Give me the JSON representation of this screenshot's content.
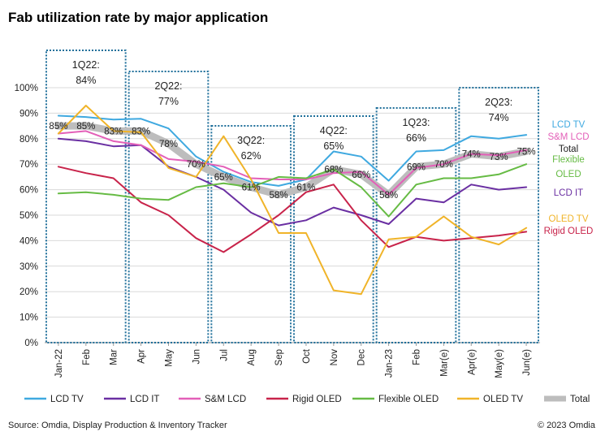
{
  "title": "Fab utilization rate by major application",
  "source": "Source: Omdia, Display Production & Inventory Tracker",
  "copyright": "© 2023 Omdia",
  "chart_data": {
    "type": "line",
    "title": "Fab utilization rate by major application",
    "ylim": [
      0,
      100
    ],
    "y_ticks": [
      "0%",
      "10%",
      "20%",
      "30%",
      "40%",
      "50%",
      "60%",
      "70%",
      "80%",
      "90%",
      "100%"
    ],
    "x": [
      "Jan-22",
      "Feb",
      "Mar",
      "Apr",
      "May",
      "Jun",
      "Jul",
      "Aug",
      "Sep",
      "Oct",
      "Nov",
      "Dec",
      "Jan-23",
      "Feb",
      "Mar(e)",
      "Apr(e)",
      "May(e)",
      "Jun(e)"
    ],
    "grid": "horizontal",
    "legend_position": "bottom",
    "series": [
      {
        "name": "LCD TV",
        "color": "#3fa9e0",
        "right_label": "LCD TV",
        "values": [
          89,
          88.5,
          87.5,
          87.8,
          84,
          73,
          67,
          63,
          61.5,
          64,
          75,
          73,
          63.5,
          75,
          75.5,
          81,
          80,
          81.5
        ]
      },
      {
        "name": "LCD IT",
        "color": "#6a2fa2",
        "right_label": "LCD IT",
        "values": [
          80,
          79,
          77,
          77.5,
          69,
          65,
          60,
          51,
          46,
          48,
          53,
          50,
          46.5,
          56.5,
          55,
          62,
          60,
          61
        ]
      },
      {
        "name": "S&M LCD",
        "color": "#e35fb8",
        "right_label": "S&M LCD",
        "values": [
          82,
          83,
          79,
          77.5,
          72,
          71,
          69,
          64.5,
          64,
          64,
          66.5,
          67,
          58,
          68.5,
          70,
          74,
          73.5,
          75.5
        ]
      },
      {
        "name": "Rigid OLED",
        "color": "#c8234a",
        "right_label": "Rigid OLED",
        "values": [
          69,
          66.5,
          64.5,
          55,
          50,
          41,
          35.5,
          42.5,
          50,
          59,
          62,
          48,
          37.5,
          41.5,
          40,
          41,
          42,
          43.5
        ]
      },
      {
        "name": "Flexible OLED",
        "color": "#66bb44",
        "right_label": "Flexible OLED",
        "values": [
          58.5,
          59,
          58,
          56.5,
          56,
          61,
          62.5,
          61,
          65,
          64.5,
          68,
          61,
          49.5,
          62,
          64.5,
          64.5,
          66,
          70
        ]
      },
      {
        "name": "OLED TV",
        "color": "#f0b429",
        "right_label": "OLED TV",
        "values": [
          82,
          93,
          83,
          82.5,
          68.5,
          65,
          81,
          64,
          43,
          43,
          20.5,
          19,
          40.5,
          41.5,
          49.5,
          41.5,
          38.5,
          45
        ]
      },
      {
        "name": "Total",
        "color": "#bdbdbd",
        "right_label": "Total",
        "values": [
          85,
          85,
          83,
          83,
          78,
          70,
          65,
          61,
          58,
          61,
          68,
          66,
          58,
          69,
          70,
          74,
          73,
          75
        ],
        "labels": [
          "85%",
          "85%",
          "83%",
          "83%",
          "78%",
          "70%",
          "65%",
          "61%",
          "58%",
          "61%",
          "68%",
          "66%",
          "58%",
          "69%",
          "70%",
          "74%",
          "73%",
          "75%"
        ]
      }
    ],
    "quarters": [
      {
        "name": "1Q22:",
        "value": "84%",
        "start": 0,
        "end": 2
      },
      {
        "name": "2Q22:",
        "value": "77%",
        "start": 3,
        "end": 5
      },
      {
        "name": "3Q22:",
        "value": "62%",
        "start": 6,
        "end": 8
      },
      {
        "name": "4Q22:",
        "value": "65%",
        "start": 9,
        "end": 11
      },
      {
        "name": "1Q23:",
        "value": "66%",
        "start": 12,
        "end": 14
      },
      {
        "name": "2Q23:",
        "value": "74%",
        "start": 15,
        "end": 17
      }
    ]
  }
}
